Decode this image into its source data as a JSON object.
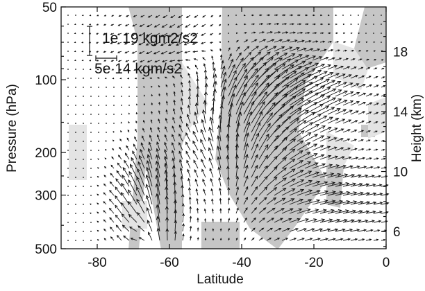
{
  "chart_data": {
    "type": "vector-field",
    "xlabel": "Latitude",
    "ylabel": "Pressure (hPa)",
    "y2label": "Height (km)",
    "x_ticks": [
      -80,
      -60,
      -40,
      -20,
      0
    ],
    "y_ticks": [
      50,
      100,
      200,
      300,
      500
    ],
    "y2_ticks": [
      6,
      10,
      14,
      18
    ],
    "xlim": [
      -90,
      0
    ],
    "ylim_pressure": [
      500,
      50
    ],
    "ylog": true,
    "reference_vertical": "1e 19 kgm2/s2",
    "reference_horizontal": "5e 14 kgm/s2",
    "shading_colors": {
      "significant_dark": "#c6c6c6",
      "significant_light": "#e4e4e4"
    },
    "grid": false
  }
}
